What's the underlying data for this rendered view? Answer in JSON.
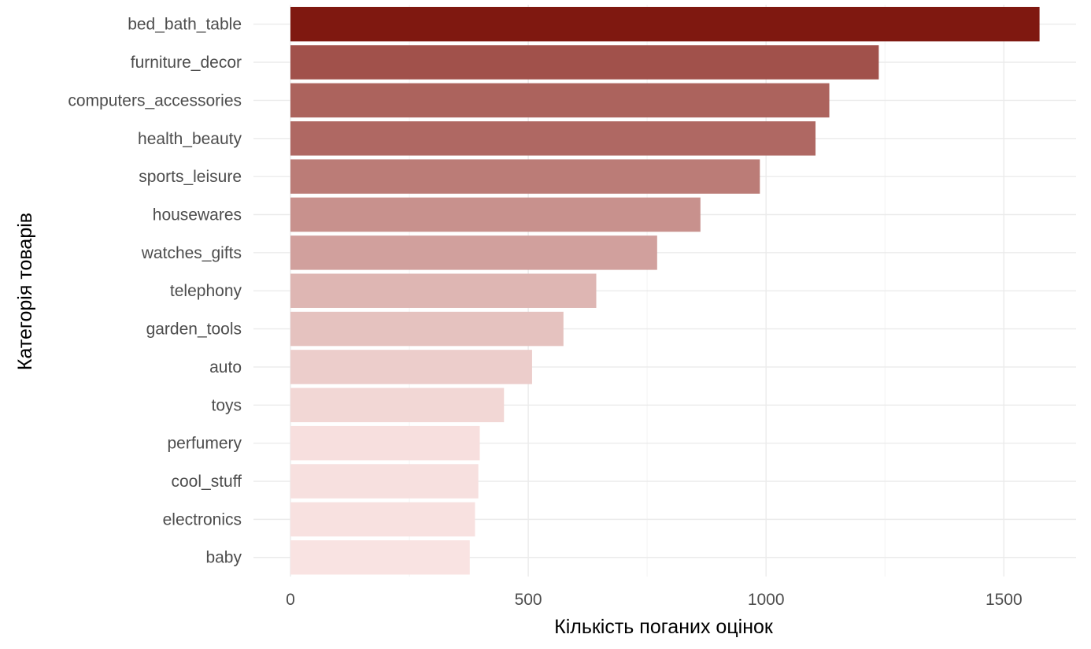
{
  "chart_data": {
    "type": "bar",
    "orientation": "horizontal",
    "title": "",
    "xlabel": "Кількість поганих оцінок",
    "ylabel": "Категорія товарів",
    "categories": [
      "bed_bath_table",
      "furniture_decor",
      "computers_accessories",
      "health_beauty",
      "sports_leisure",
      "housewares",
      "watches_gifts",
      "telephony",
      "garden_tools",
      "auto",
      "toys",
      "perfumery",
      "cool_stuff",
      "electronics",
      "baby"
    ],
    "values": [
      1575,
      1237,
      1133,
      1104,
      987,
      862,
      771,
      643,
      574,
      508,
      449,
      398,
      395,
      388,
      377
    ],
    "xlim": [
      0,
      1575
    ],
    "xticks": [
      0,
      500,
      1000,
      1500
    ],
    "xtick_labels": [
      "0",
      "500",
      "1000",
      "1500"
    ],
    "color_low": "#f9e3e2",
    "color_high": "#7f1810",
    "grid": true,
    "legend": "none"
  }
}
